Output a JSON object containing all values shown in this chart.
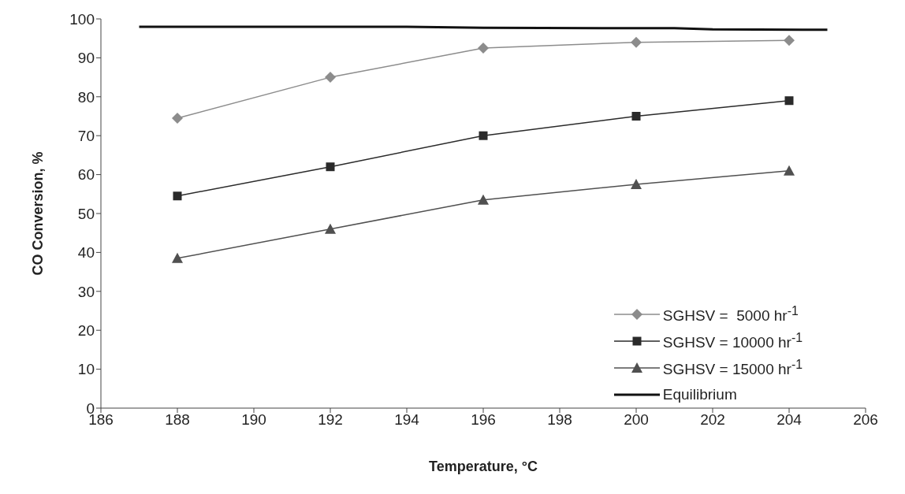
{
  "chart_data": {
    "type": "line",
    "xlabel": "Temperature,     °C",
    "ylabel": "CO Conversion,      %",
    "xlim": [
      186,
      206
    ],
    "xticks": [
      186,
      188,
      190,
      192,
      194,
      196,
      198,
      200,
      202,
      204,
      206
    ],
    "ylim": [
      0,
      100
    ],
    "yticks": [
      0,
      10,
      20,
      30,
      40,
      50,
      60,
      70,
      80,
      90,
      100
    ],
    "grid": false,
    "legend": "bottom right",
    "series": [
      {
        "name": "SGHSV =  5000 hr$^{-1}$",
        "color": "#8c8c8c",
        "marker": "diamond",
        "x": [
          188,
          192,
          196,
          200,
          204
        ],
        "values": [
          74.5,
          85,
          92.5,
          94,
          94.5
        ]
      },
      {
        "name": "SGHSV = 10000 hr$^{-1}$",
        "color": "#2a2a2a",
        "marker": "square",
        "x": [
          188,
          192,
          196,
          200,
          204
        ],
        "values": [
          54.5,
          62,
          70,
          75,
          79
        ]
      },
      {
        "name": "SGHSV = 15000 hr$^{-1}$",
        "color": "#505050",
        "marker": "triangle",
        "x": [
          188,
          192,
          196,
          200,
          204
        ],
        "values": [
          38.5,
          46,
          53.5,
          57.5,
          61
        ]
      },
      {
        "name": "Equilibrium",
        "color": "#111111",
        "marker": "none",
        "x": [
          187,
          194,
          196,
          201,
          202,
          205
        ],
        "values": [
          98,
          98,
          97.7,
          97.6,
          97.3,
          97.2
        ]
      }
    ]
  }
}
